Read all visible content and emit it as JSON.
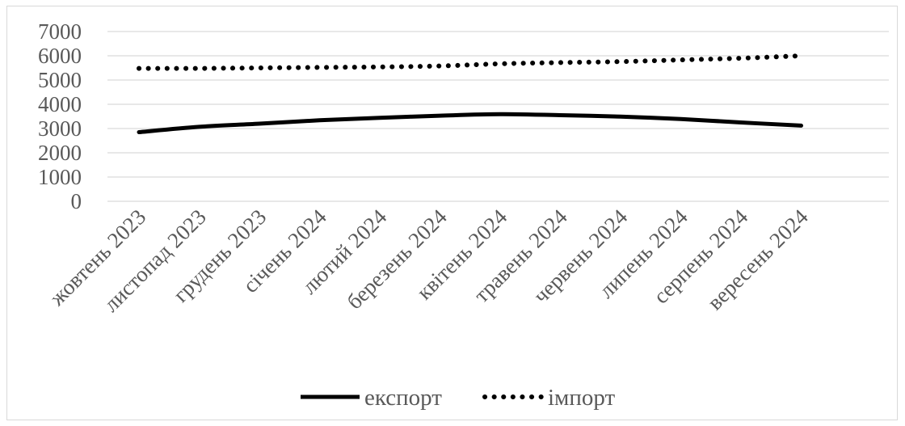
{
  "chart_data": {
    "type": "line",
    "title": "",
    "xlabel": "",
    "ylabel": "",
    "categories": [
      "жовтень 2023",
      "листопад 2023",
      "грудень 2023",
      "січень 2024",
      "лютий 2024",
      "березень 2024",
      "квітень 2024",
      "травень 2024",
      "червень 2024",
      "липень 2024",
      "серпень 2024",
      "вересень 2024"
    ],
    "ylim": [
      0,
      7000
    ],
    "yticks": [
      "0",
      "1000",
      "2000",
      "3000",
      "4000",
      "5000",
      "6000",
      "7000"
    ],
    "grid": true,
    "legend_position": "bottom",
    "series": [
      {
        "name": "експорт",
        "style": "solid",
        "color": "#000000",
        "values": [
          2850,
          3070,
          3200,
          3340,
          3440,
          3530,
          3590,
          3550,
          3490,
          3390,
          3250,
          3120
        ]
      },
      {
        "name": "імпорт",
        "style": "dotted",
        "color": "#000000",
        "values": [
          5480,
          5480,
          5500,
          5520,
          5540,
          5580,
          5670,
          5720,
          5760,
          5830,
          5900,
          6000
        ]
      }
    ]
  }
}
